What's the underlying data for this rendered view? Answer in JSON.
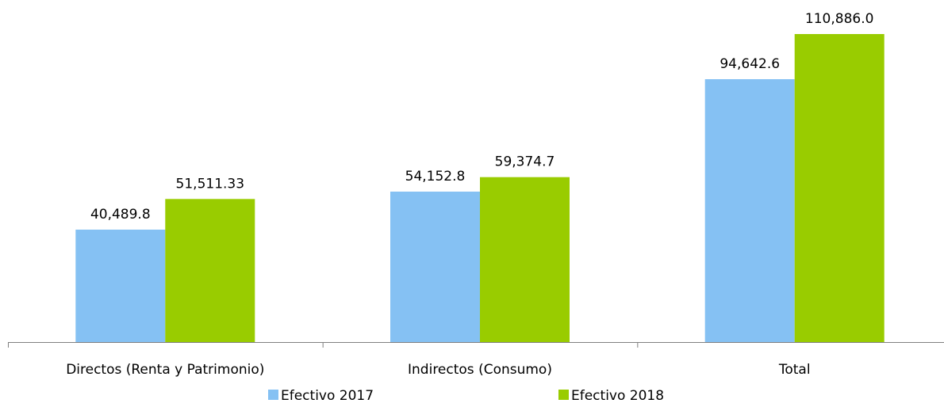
{
  "chart_data": {
    "type": "bar",
    "categories": [
      "Directos (Renta y Patrimonio)",
      "Indirectos (Consumo)",
      "Total"
    ],
    "series": [
      {
        "name": "Efectivo 2017",
        "values": [
          40489.8,
          54152.8,
          94642.6
        ],
        "labels": [
          "40,489.8",
          "54,152.8",
          "94,642.6"
        ],
        "color": "#85C1F3"
      },
      {
        "name": "Efectivo 2018",
        "values": [
          51511.33,
          59374.7,
          110886.0
        ],
        "labels": [
          "51,511.33",
          "59,374.7",
          "110,886.0"
        ],
        "color": "#99CC00"
      }
    ],
    "ylim": [
      0,
      120000
    ],
    "grid": false,
    "legend": "bottom",
    "axis_color": "#808080"
  }
}
